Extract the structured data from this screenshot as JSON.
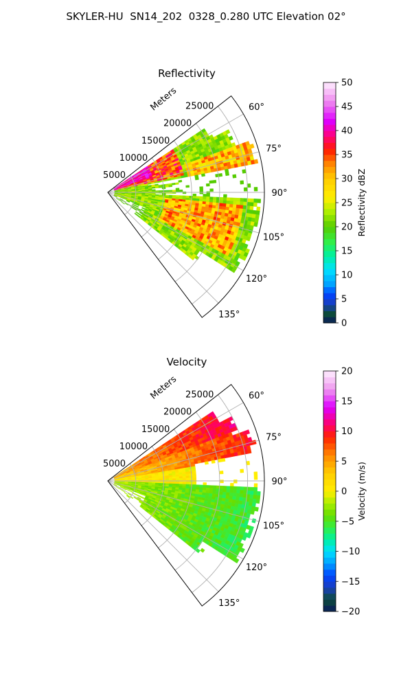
{
  "suptitle": "SKYLER-HU  SN14_202  0328_0.280 UTC Elevation 02°",
  "chart_data": [
    {
      "type": "heatmap",
      "projection": "polar-sector",
      "title": "Reflectivity",
      "radial_label": "Meters",
      "radial_ticks": [
        "5000",
        "10000",
        "15000",
        "20000",
        "25000"
      ],
      "radial_tick_values": [
        5000,
        10000,
        15000,
        20000,
        25000
      ],
      "rmax": 28000,
      "azimuth_range_deg": [
        52,
        143
      ],
      "angle_ticks": [
        "60°",
        "75°",
        "90°",
        "105°",
        "120°",
        "135°"
      ],
      "angle_tick_values": [
        60,
        75,
        90,
        105,
        120,
        135
      ],
      "colorbar": {
        "label": "Reflectivity dBZ",
        "range": [
          0,
          50
        ],
        "ticks": [
          "0",
          "5",
          "10",
          "15",
          "20",
          "25",
          "30",
          "35",
          "40",
          "45",
          "50"
        ],
        "stops": [
          {
            "v": 0,
            "c": "#0a1a5c"
          },
          {
            "v": 2,
            "c": "#0d4d3a"
          },
          {
            "v": 4,
            "c": "#1a3fbf"
          },
          {
            "v": 6,
            "c": "#0044ff"
          },
          {
            "v": 8,
            "c": "#00a0ff"
          },
          {
            "v": 11,
            "c": "#00e0ff"
          },
          {
            "v": 14,
            "c": "#00f0a0"
          },
          {
            "v": 17,
            "c": "#33ee44"
          },
          {
            "v": 20,
            "c": "#55cc00"
          },
          {
            "v": 23,
            "c": "#aaee00"
          },
          {
            "v": 26,
            "c": "#ffee00"
          },
          {
            "v": 30,
            "c": "#ffcc00"
          },
          {
            "v": 33,
            "c": "#ff8800"
          },
          {
            "v": 36,
            "c": "#ff1a00"
          },
          {
            "v": 39,
            "c": "#ff0080"
          },
          {
            "v": 42,
            "c": "#dd00ff"
          },
          {
            "v": 46,
            "c": "#ee88ee"
          },
          {
            "v": 50,
            "c": "#ffeeff"
          }
        ]
      },
      "data_summary": "Echoes between azimuth ~58° and ~128°, mostly 18–30 dBZ, with cores 33–42 dBZ near 65–75° close to the radar and bands at 100–115°."
    },
    {
      "type": "heatmap",
      "projection": "polar-sector",
      "title": "Velocity",
      "radial_label": "Meters",
      "radial_ticks": [
        "5000",
        "10000",
        "15000",
        "20000",
        "25000"
      ],
      "radial_tick_values": [
        5000,
        10000,
        15000,
        20000,
        25000
      ],
      "rmax": 28000,
      "azimuth_range_deg": [
        52,
        143
      ],
      "angle_ticks": [
        "60°",
        "75°",
        "90°",
        "105°",
        "120°",
        "135°"
      ],
      "angle_tick_values": [
        60,
        75,
        90,
        105,
        120,
        135
      ],
      "colorbar": {
        "label": "Velocity (m/s)",
        "range": [
          -20,
          20
        ],
        "ticks": [
          "−20",
          "−15",
          "−10",
          "−5",
          "0",
          "5",
          "10",
          "15",
          "20"
        ],
        "stops": [
          {
            "v": -20,
            "c": "#0a1a5c"
          },
          {
            "v": -18,
            "c": "#0d4d3a"
          },
          {
            "v": -16,
            "c": "#1a3fbf"
          },
          {
            "v": -14,
            "c": "#0044ff"
          },
          {
            "v": -12,
            "c": "#00a0ff"
          },
          {
            "v": -10,
            "c": "#00e0ff"
          },
          {
            "v": -8,
            "c": "#00f0a0"
          },
          {
            "v": -6,
            "c": "#33ee44"
          },
          {
            "v": -4,
            "c": "#66dd00"
          },
          {
            "v": -2,
            "c": "#aaee00"
          },
          {
            "v": 0,
            "c": "#ffee00"
          },
          {
            "v": 3,
            "c": "#ffcc00"
          },
          {
            "v": 6,
            "c": "#ff8800"
          },
          {
            "v": 9,
            "c": "#ff2200"
          },
          {
            "v": 11,
            "c": "#ff0066"
          },
          {
            "v": 14,
            "c": "#dd00ff"
          },
          {
            "v": 17,
            "c": "#ee99ee"
          },
          {
            "v": 20,
            "c": "#ffeeff"
          }
        ]
      },
      "data_summary": "Inbound/outbound couplet: +5 to +11 m/s for azimuth 55–85°, near 0 m/s close to radar, −3 to −7 m/s for azimuth 90–128°."
    }
  ]
}
